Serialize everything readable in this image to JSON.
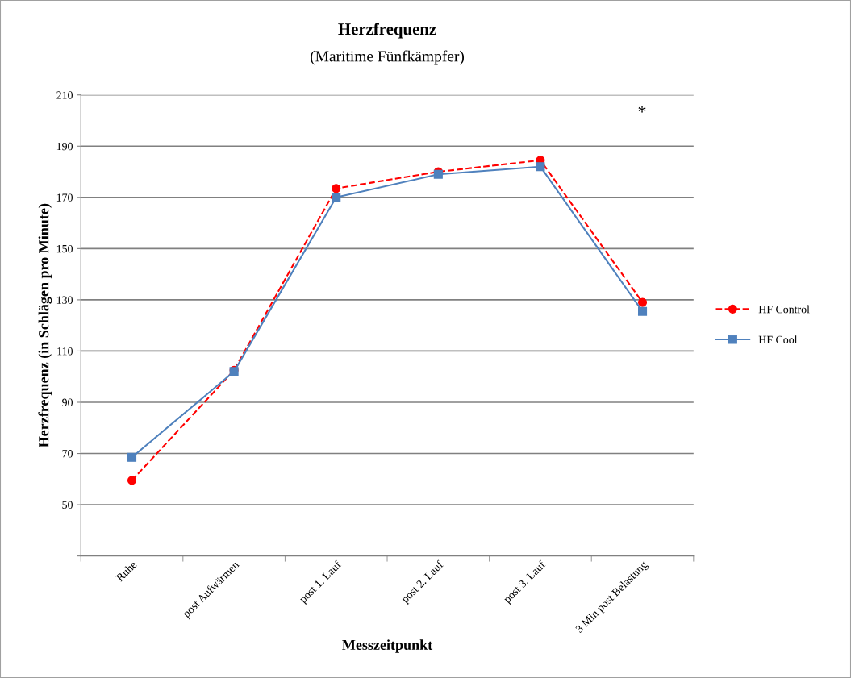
{
  "chart_data": {
    "type": "line",
    "title": "Herzfrequenz",
    "subtitle": "(Maritime Fünfkämpfer)",
    "xlabel": "Messzeitpunkt",
    "ylabel": "Herzfrequenz (in Schlägen pro Minute)",
    "categories": [
      "Ruhe",
      "post Aufwärmen",
      "post 1. Lauf",
      "post 2. Lauf",
      "post 3. Lauf",
      "3 Min post Belastung"
    ],
    "series": [
      {
        "name": "HF Control",
        "color": "#ff0000",
        "values": [
          59.5,
          102.5,
          173.5,
          180,
          184.5,
          129
        ],
        "marker": "circle",
        "line_style": "dashed"
      },
      {
        "name": "HF Cool",
        "color": "#4f81bd",
        "values": [
          68.5,
          102,
          170,
          179,
          182,
          125.5
        ],
        "marker": "square",
        "line_style": "solid"
      }
    ],
    "ylim": [
      30,
      210
    ],
    "yticks": [
      {
        "value": 30,
        "label": null
      },
      50,
      70,
      90,
      110,
      130,
      150,
      170,
      190,
      210
    ],
    "grid": "y",
    "legend": "right",
    "annotations": [
      "*"
    ]
  }
}
